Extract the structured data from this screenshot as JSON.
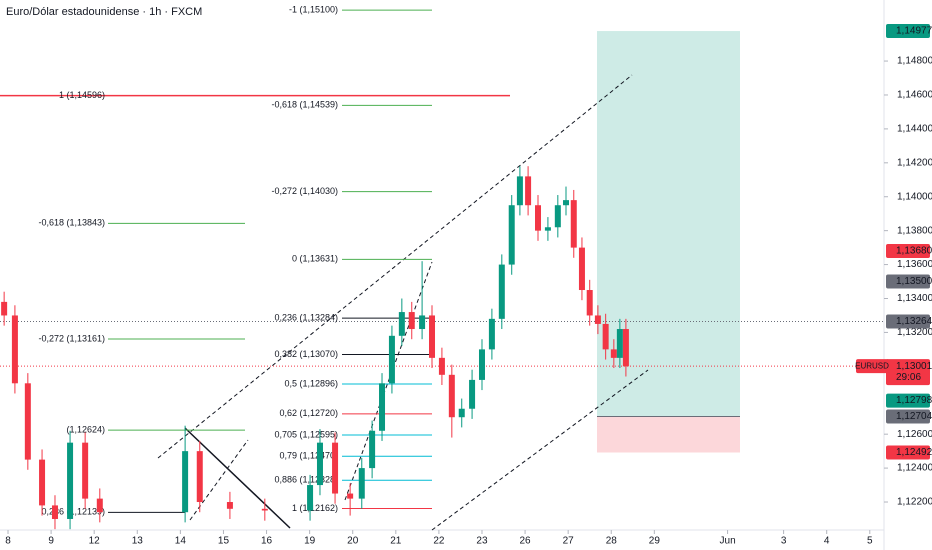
{
  "chart_data": {
    "type": "candlestick",
    "title": "Euro/Dólar estadounidense · 1h · FXCM",
    "x": [
      -0.09,
      0.16,
      0.46,
      0.79,
      1.09,
      1.44,
      1.79,
      2.13,
      4.11,
      4.45,
      5.15,
      5.96,
      7.01,
      7.24,
      7.59,
      7.94,
      8.21,
      8.45,
      8.68,
      8.91,
      9.14,
      9.37,
      9.61,
      9.84,
      10.07,
      10.3,
      10.53,
      10.77,
      11.0,
      11.23,
      11.46,
      11.69,
      11.88,
      12.07,
      12.3,
      12.53,
      12.76,
      12.95,
      13.13,
      13.32,
      13.5,
      13.69,
      13.87,
      14.06,
      14.2,
      14.34
    ],
    "open": [
      1.1338,
      1.133,
      1.129,
      1.1245,
      1.1218,
      1.121,
      1.1255,
      1.1222,
      1.1214,
      1.125,
      1.122,
      1.1216,
      1.1215,
      1.123,
      1.1255,
      1.1225,
      1.1222,
      1.124,
      1.1262,
      1.129,
      1.1318,
      1.1332,
      1.1322,
      1.133,
      1.1305,
      1.1295,
      1.127,
      1.1275,
      1.1292,
      1.131,
      1.1328,
      1.136,
      1.1395,
      1.1412,
      1.1395,
      1.138,
      1.1382,
      1.1395,
      1.1398,
      1.137,
      1.1345,
      1.133,
      1.1325,
      1.131,
      1.1305,
      1.1322
    ],
    "high": [
      1.1344,
      1.1336,
      1.1296,
      1.1251,
      1.1224,
      1.1262,
      1.1261,
      1.1228,
      1.1265,
      1.1256,
      1.1226,
      1.1222,
      1.1236,
      1.1263,
      1.1261,
      1.1231,
      1.1246,
      1.1268,
      1.1296,
      1.1324,
      1.134,
      1.1338,
      1.1362,
      1.1336,
      1.1311,
      1.1301,
      1.1281,
      1.1298,
      1.1316,
      1.1334,
      1.1366,
      1.1401,
      1.1418,
      1.1418,
      1.1401,
      1.1388,
      1.1401,
      1.1406,
      1.1404,
      1.1376,
      1.1351,
      1.1336,
      1.1331,
      1.1316,
      1.1328,
      1.1328
    ],
    "low": [
      1.1324,
      1.1284,
      1.1239,
      1.1212,
      1.1204,
      1.1204,
      1.1216,
      1.1208,
      1.1208,
      1.1214,
      1.121,
      1.1209,
      1.1209,
      1.1224,
      1.1219,
      1.1212,
      1.1216,
      1.1234,
      1.1256,
      1.1284,
      1.1312,
      1.1316,
      1.1316,
      1.1299,
      1.1289,
      1.1258,
      1.1264,
      1.1269,
      1.1286,
      1.1304,
      1.1322,
      1.1354,
      1.1389,
      1.1389,
      1.1374,
      1.1374,
      1.1376,
      1.1389,
      1.1364,
      1.1339,
      1.1324,
      1.1319,
      1.1304,
      1.1299,
      1.1299,
      1.1294
    ],
    "close": [
      1.133,
      1.129,
      1.1245,
      1.1218,
      1.121,
      1.1255,
      1.1222,
      1.1214,
      1.125,
      1.122,
      1.1216,
      1.1215,
      1.123,
      1.1255,
      1.1225,
      1.1222,
      1.124,
      1.1262,
      1.129,
      1.1318,
      1.1332,
      1.1322,
      1.133,
      1.1305,
      1.1295,
      1.127,
      1.1275,
      1.1292,
      1.131,
      1.1328,
      1.136,
      1.1395,
      1.1412,
      1.1395,
      1.138,
      1.1382,
      1.1395,
      1.1398,
      1.137,
      1.1345,
      1.133,
      1.1325,
      1.131,
      1.1305,
      1.1322,
      1.13
    ],
    "up_color": "#089981",
    "down_color": "#f23645",
    "xlim": [
      -0.186,
      20.33
    ],
    "xticks": [
      {
        "value": 0,
        "label": "8"
      },
      {
        "value": 1,
        "label": "9"
      },
      {
        "value": 2,
        "label": "12"
      },
      {
        "value": 3,
        "label": "13"
      },
      {
        "value": 4,
        "label": "14"
      },
      {
        "value": 5,
        "label": "15"
      },
      {
        "value": 6,
        "label": "16"
      },
      {
        "value": 7,
        "label": "19"
      },
      {
        "value": 8,
        "label": "20"
      },
      {
        "value": 9,
        "label": "21"
      },
      {
        "value": 10,
        "label": "22"
      },
      {
        "value": 11,
        "label": "23"
      },
      {
        "value": 12,
        "label": "26"
      },
      {
        "value": 13,
        "label": "27"
      },
      {
        "value": 14,
        "label": "28"
      },
      {
        "value": 15,
        "label": "29"
      },
      {
        "value": 16.7,
        "label": "Jun"
      },
      {
        "value": 18,
        "label": "3"
      },
      {
        "value": 19,
        "label": "4"
      },
      {
        "value": 20,
        "label": "5"
      }
    ],
    "ylim": [
      1.12035,
      1.1516
    ],
    "yticks": [
      {
        "value": 1.148,
        "label": "1,14800"
      },
      {
        "value": 1.146,
        "label": "1,14600"
      },
      {
        "value": 1.144,
        "label": "1,14400"
      },
      {
        "value": 1.142,
        "label": "1,14200"
      },
      {
        "value": 1.14,
        "label": "1,14000"
      },
      {
        "value": 1.138,
        "label": "1,13800"
      },
      {
        "value": 1.136,
        "label": "1,13600"
      },
      {
        "value": 1.134,
        "label": "1,13400"
      },
      {
        "value": 1.132,
        "label": "1,13200"
      },
      {
        "value": 1.126,
        "label": "1,12600"
      },
      {
        "value": 1.124,
        "label": "1,12400"
      },
      {
        "value": 1.122,
        "label": "1,12200"
      }
    ],
    "price_badges": [
      {
        "value": 1.14977,
        "label": "1,14977",
        "color": "#089981"
      },
      {
        "value": 1.1368,
        "label": "1,13680",
        "color": "#f23645"
      },
      {
        "value": 1.135,
        "label": "1,13500",
        "color": "#6a6d78"
      },
      {
        "value": 1.13264,
        "label": "1,13264",
        "color": "#6a6d78"
      },
      {
        "value": 1.13001,
        "label": "1,13001",
        "color": "#f23645",
        "tag": "EURUSD",
        "timer": "29:06"
      },
      {
        "value": 1.12798,
        "label": "1,12798",
        "color": "#089981"
      },
      {
        "value": 1.12704,
        "label": "1,12704",
        "color": "#6a6d78"
      },
      {
        "value": 1.12492,
        "label": "1,12492",
        "color": "#f23645"
      }
    ],
    "fib_left": [
      {
        "label": "1 (1,14596)",
        "value": 1.14596,
        "color": "#f23645"
      },
      {
        "label": "-0,618 (1,13843)",
        "value": 1.13843,
        "color": "#4caf50"
      },
      {
        "label": "-0,272 (1,13161)",
        "value": 1.13161,
        "color": "#4caf50"
      },
      {
        "label": "(1,12624)",
        "value": 1.12624,
        "color": "#4caf50"
      },
      {
        "label": "0,236 (1,12139)",
        "value": 1.12139,
        "color": "#131722"
      }
    ],
    "fib_right": [
      {
        "label": "-1 (1,15100)",
        "value": 1.151,
        "color": "#4caf50"
      },
      {
        "label": "-0,618 (1,14539)",
        "value": 1.14539,
        "color": "#4caf50"
      },
      {
        "label": "-0,272 (1,14030)",
        "value": 1.1403,
        "color": "#4caf50"
      },
      {
        "label": "0 (1,13631)",
        "value": 1.13631,
        "color": "#4caf50"
      },
      {
        "label": "0,236 (1,13284)",
        "value": 1.13284,
        "color": "#131722"
      },
      {
        "label": "0,382 (1,13070)",
        "value": 1.1307,
        "color": "#131722"
      },
      {
        "label": "0,5 (1,12896)",
        "value": 1.12896,
        "color": "#00bcd4"
      },
      {
        "label": "0,62 (1,12720)",
        "value": 1.1272,
        "color": "#f23645"
      },
      {
        "label": "0,705 (1,12595)",
        "value": 1.12595,
        "color": "#00bcd4"
      },
      {
        "label": "0,79 (1,12470)",
        "value": 1.1247,
        "color": "#00bcd4"
      },
      {
        "label": "0,886 (1,12328)",
        "value": 1.12328,
        "color": "#00bcd4"
      },
      {
        "label": "1 (1,12162)",
        "value": 1.12162,
        "color": "#f23645"
      }
    ]
  }
}
